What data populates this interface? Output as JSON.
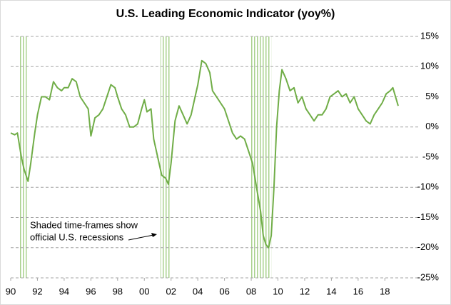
{
  "chart_data": {
    "type": "line",
    "title": "U.S. Leading Economic Indicator (yoy%)",
    "annotation": [
      "Shaded time-frames show",
      "official U.S. recessions"
    ],
    "recessions": [
      [
        1990.6,
        1991.2
      ],
      [
        2001.2,
        2001.9
      ],
      [
        2007.9,
        2009.5
      ]
    ],
    "recession_color": "#a9d18e",
    "grid": true,
    "xlim": [
      1990,
      2020.6
    ],
    "xticks": [
      {
        "value": 1990,
        "label": "90"
      },
      {
        "value": 1992,
        "label": "92"
      },
      {
        "value": 1994,
        "label": "94"
      },
      {
        "value": 1996,
        "label": "96"
      },
      {
        "value": 1998,
        "label": "98"
      },
      {
        "value": 2000,
        "label": "00"
      },
      {
        "value": 2002,
        "label": "02"
      },
      {
        "value": 2004,
        "label": "04"
      },
      {
        "value": 2006,
        "label": "06"
      },
      {
        "value": 2008,
        "label": "08"
      },
      {
        "value": 2010,
        "label": "10"
      },
      {
        "value": 2012,
        "label": "12"
      },
      {
        "value": 2014,
        "label": "14"
      },
      {
        "value": 2016,
        "label": "16"
      },
      {
        "value": 2018,
        "label": "18"
      }
    ],
    "ylim": [
      -25,
      15
    ],
    "yticks": [
      {
        "value": -25,
        "label": "-25%"
      },
      {
        "value": -20,
        "label": "-20%"
      },
      {
        "value": -15,
        "label": "-15%"
      },
      {
        "value": -10,
        "label": "-10%"
      },
      {
        "value": -5,
        "label": "-5%"
      },
      {
        "value": 0,
        "label": "0%"
      },
      {
        "value": 5,
        "label": "5%"
      },
      {
        "value": 10,
        "label": "10%"
      },
      {
        "value": 15,
        "label": "15%"
      }
    ],
    "color": "#70ad47",
    "x": [
      1990.0,
      1990.3,
      1990.5,
      1990.8,
      1991.0,
      1991.3,
      1991.5,
      1991.8,
      1992.0,
      1992.3,
      1992.6,
      1992.9,
      1993.2,
      1993.5,
      1993.8,
      1994.0,
      1994.3,
      1994.6,
      1994.9,
      1995.2,
      1995.5,
      1995.8,
      1996.0,
      1996.3,
      1996.6,
      1996.9,
      1997.2,
      1997.5,
      1997.8,
      1998.0,
      1998.3,
      1998.6,
      1998.9,
      1999.2,
      1999.5,
      1999.8,
      2000.0,
      2000.2,
      2000.5,
      2000.7,
      2001.0,
      2001.3,
      2001.6,
      2001.8,
      2002.0,
      2002.3,
      2002.6,
      2002.9,
      2003.2,
      2003.5,
      2003.8,
      2004.0,
      2004.3,
      2004.6,
      2004.9,
      2005.1,
      2005.4,
      2005.7,
      2006.0,
      2006.3,
      2006.6,
      2006.9,
      2007.2,
      2007.5,
      2007.8,
      2008.1,
      2008.4,
      2008.7,
      2008.9,
      2009.1,
      2009.3,
      2009.5,
      2009.7,
      2009.9,
      2010.1,
      2010.3,
      2010.6,
      2010.9,
      2011.2,
      2011.5,
      2011.8,
      2012.1,
      2012.4,
      2012.7,
      2013.0,
      2013.3,
      2013.6,
      2013.9,
      2014.2,
      2014.5,
      2014.8,
      2015.1,
      2015.4,
      2015.7,
      2016.0,
      2016.3,
      2016.6,
      2016.9,
      2017.2,
      2017.5,
      2017.8,
      2018.1,
      2018.4,
      2018.6,
      2018.8,
      2019.0
    ],
    "values": [
      -1,
      -1.3,
      -1,
      -5,
      -7,
      -9,
      -6,
      -1,
      2,
      5,
      5,
      4.5,
      7.5,
      6.5,
      6,
      6.5,
      6.5,
      8,
      7.5,
      5,
      4,
      3,
      -1.5,
      1.5,
      2,
      3,
      5,
      7,
      6.5,
      5,
      3,
      2,
      0,
      0,
      0.5,
      3,
      4.5,
      2.5,
      3,
      -2,
      -5,
      -8,
      -8.5,
      -9.5,
      -6,
      1,
      3.5,
      2,
      0.5,
      2,
      5,
      7,
      11,
      10.5,
      9,
      6,
      5,
      4,
      3,
      1,
      -1,
      -2,
      -1.5,
      -2,
      -4,
      -6,
      -10,
      -14,
      -18,
      -19.5,
      -20,
      -18,
      -10,
      0,
      6,
      9.5,
      8,
      6,
      6.5,
      4,
      5,
      3,
      2,
      1,
      2,
      2,
      3,
      5,
      5.5,
      6,
      5,
      5.5,
      4,
      5,
      3,
      2,
      1,
      0.5,
      2,
      3,
      4,
      5.5,
      6,
      6.5,
      5,
      3.5
    ]
  }
}
